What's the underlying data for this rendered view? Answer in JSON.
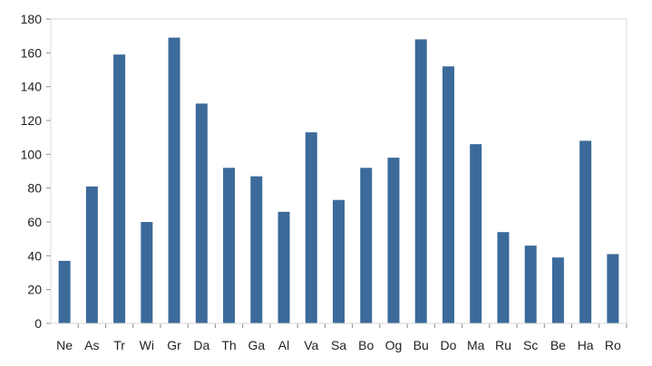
{
  "chart_data": {
    "type": "bar",
    "categories": [
      "Ne",
      "As",
      "Tr",
      "Wi",
      "Gr",
      "Da",
      "Th",
      "Ga",
      "Al",
      "Va",
      "Sa",
      "Bo",
      "Og",
      "Bu",
      "Do",
      "Ma",
      "Ru",
      "Sc",
      "Be",
      "Ha",
      "Ro"
    ],
    "values": [
      37,
      81,
      159,
      60,
      169,
      130,
      92,
      87,
      66,
      113,
      73,
      92,
      98,
      168,
      152,
      106,
      54,
      46,
      39,
      108,
      41
    ],
    "ylim": [
      0,
      180
    ],
    "yticks": [
      0,
      20,
      40,
      60,
      80,
      100,
      120,
      140,
      160,
      180
    ],
    "grid": false,
    "legend": "none",
    "bar_color": "#3c6a9a"
  }
}
